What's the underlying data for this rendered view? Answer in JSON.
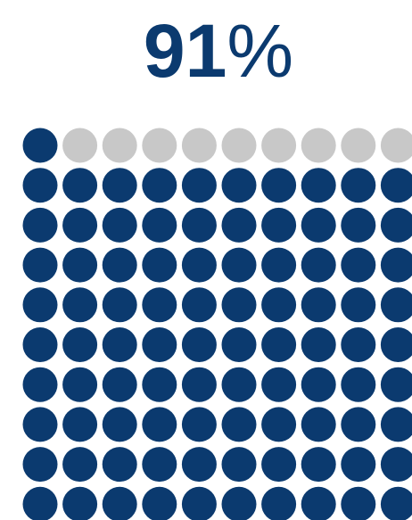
{
  "chart_data": {
    "type": "waffle",
    "values": [
      91
    ],
    "value_labels": [
      "91%"
    ],
    "color": "#0b3a6f",
    "empty_color": "#c8c8c8"
  }
}
